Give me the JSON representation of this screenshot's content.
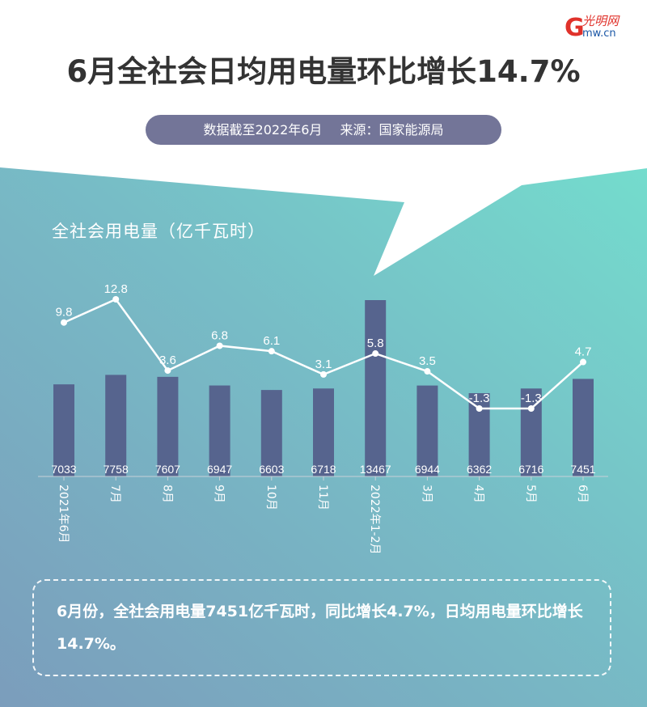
{
  "header": {
    "logo_text": "光明网",
    "logo_domain": "Gmw.cn",
    "title": "6月全社会日均用电量环比增长14.7%",
    "source_date": "数据截至2022年6月",
    "source_label": "来源：国家能源局"
  },
  "colors": {
    "bar": "#56648e",
    "line": "#ffffff",
    "pill": "#737598",
    "title": "#333333",
    "bg_gradient_start": "#7a9fba",
    "bg_gradient_end": "#76d6cc",
    "logo_red": "#e0322b",
    "logo_blue": "#1b57a6"
  },
  "chart_data": {
    "type": "bar",
    "title": "全社会用电量（亿千瓦时）",
    "xlabel": "",
    "ylabel": "全社会用电量（亿千瓦时）",
    "categories": [
      "2021年6月",
      "7月",
      "8月",
      "9月",
      "10月",
      "11月",
      "2022年1-2月",
      "3月",
      "4月",
      "5月",
      "6月"
    ],
    "series": [
      {
        "name": "全社会用电量（亿千瓦时）",
        "type": "bar",
        "values": [
          7033,
          7758,
          7607,
          6947,
          6603,
          6718,
          13467,
          6944,
          6362,
          6716,
          7451
        ]
      },
      {
        "name": "同比增长（%）",
        "type": "line",
        "values": [
          9.8,
          12.8,
          3.6,
          6.8,
          6.1,
          3.1,
          5.8,
          3.5,
          -1.3,
          -1.3,
          4.7
        ]
      }
    ],
    "bar_labels": [
      "7033",
      "7758",
      "7607",
      "6947",
      "6603",
      "6718",
      "13467",
      "6944",
      "6362",
      "6716",
      "7451"
    ],
    "line_labels": [
      "9.8",
      "12.8",
      "3.6",
      "6.8",
      "6.1",
      "3.1",
      "5.8",
      "3.5",
      "-1.3",
      "-1.3",
      "4.7"
    ],
    "grid": false,
    "legend": "none"
  },
  "summary": {
    "text": "6月份，全社会用电量7451亿千瓦时，同比增长4.7%，日均用电量环比增长14.7%。"
  }
}
